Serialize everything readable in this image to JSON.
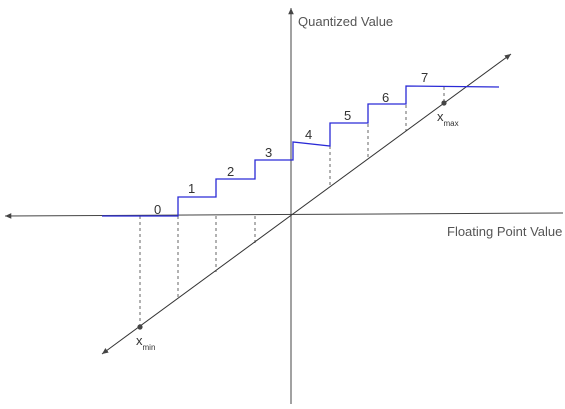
{
  "y_axis_label": "Quantized Value",
  "x_axis_label": "Floating Point Value",
  "steps": [
    "0",
    "1",
    "2",
    "3",
    "4",
    "5",
    "6",
    "7"
  ],
  "x_min": {
    "symbol": "x",
    "subscript": "min"
  },
  "x_max": {
    "symbol": "x",
    "subscript": "max"
  },
  "colors": {
    "axes": "#444444",
    "step_line": "#2a2ad6",
    "dashed": "#555555",
    "diagonal": "#333333"
  }
}
